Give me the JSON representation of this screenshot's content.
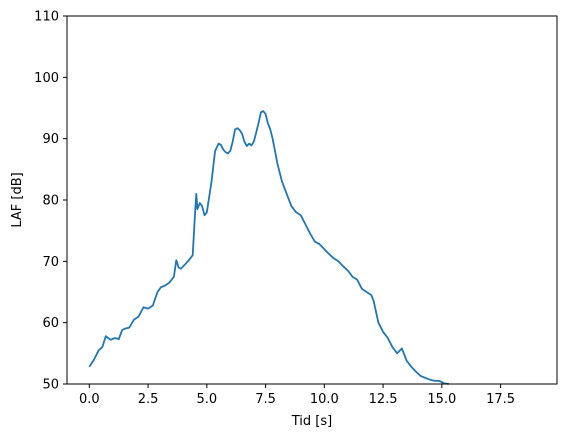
{
  "chart_data": {
    "type": "line",
    "title": "",
    "xlabel": "Tid [s]",
    "ylabel": "LAF [dB]",
    "xlim": [
      -0.95,
      19.9
    ],
    "ylim": [
      50,
      110
    ],
    "xticks": [
      0.0,
      2.5,
      5.0,
      7.5,
      10.0,
      12.5,
      15.0,
      17.5
    ],
    "xtick_labels": [
      "0.0",
      "2.5",
      "5.0",
      "7.5",
      "10.0",
      "12.5",
      "15.0",
      "17.5"
    ],
    "yticks": [
      50,
      60,
      70,
      80,
      90,
      100,
      110
    ],
    "ytick_labels": [
      "50",
      "60",
      "70",
      "80",
      "90",
      "100",
      "110"
    ],
    "grid": false,
    "legend": "none",
    "series": [
      {
        "color": "#1f77b4",
        "x": [
          0.0,
          0.2,
          0.4,
          0.55,
          0.7,
          0.8,
          0.9,
          1.1,
          1.25,
          1.4,
          1.5,
          1.7,
          1.9,
          2.1,
          2.3,
          2.5,
          2.7,
          2.9,
          3.05,
          3.2,
          3.4,
          3.6,
          3.7,
          3.8,
          3.9,
          4.0,
          4.2,
          4.4,
          4.5,
          4.55,
          4.6,
          4.7,
          4.8,
          4.9,
          5.0,
          5.1,
          5.2,
          5.35,
          5.5,
          5.6,
          5.7,
          5.8,
          5.9,
          6.0,
          6.1,
          6.2,
          6.3,
          6.4,
          6.5,
          6.6,
          6.7,
          6.8,
          6.9,
          7.0,
          7.1,
          7.2,
          7.3,
          7.4,
          7.5,
          7.6,
          7.7,
          7.8,
          7.9,
          8.0,
          8.2,
          8.4,
          8.6,
          8.8,
          9.0,
          9.2,
          9.4,
          9.6,
          9.8,
          10.0,
          10.2,
          10.4,
          10.6,
          10.8,
          11.0,
          11.2,
          11.4,
          11.6,
          11.8,
          12.0,
          12.1,
          12.3,
          12.5,
          12.7,
          12.9,
          13.1,
          13.3,
          13.5,
          13.7,
          13.9,
          14.1,
          14.3,
          14.5,
          14.7,
          14.9,
          15.1,
          15.3
        ],
        "y": [
          52.8,
          54.0,
          55.5,
          56.0,
          57.8,
          57.5,
          57.2,
          57.5,
          57.3,
          58.8,
          59.0,
          59.2,
          60.5,
          61.0,
          62.5,
          62.3,
          62.8,
          65.0,
          65.8,
          66.0,
          66.5,
          67.5,
          70.2,
          69.0,
          68.8,
          69.2,
          70.0,
          71.0,
          78.0,
          81.0,
          78.5,
          79.5,
          79.0,
          77.5,
          78.0,
          80.5,
          83.0,
          88.0,
          89.2,
          89.0,
          88.2,
          87.8,
          87.6,
          88.0,
          89.5,
          91.5,
          91.7,
          91.4,
          90.8,
          89.5,
          88.8,
          89.2,
          88.9,
          89.5,
          91.0,
          92.5,
          94.3,
          94.5,
          94.0,
          92.5,
          91.5,
          90.0,
          88.0,
          86.0,
          83.0,
          81.0,
          79.0,
          78.0,
          77.5,
          76.0,
          74.5,
          73.2,
          72.8,
          72.0,
          71.2,
          70.5,
          70.0,
          69.2,
          68.5,
          67.5,
          67.0,
          65.5,
          65.0,
          64.5,
          63.5,
          60.0,
          58.5,
          57.5,
          56.0,
          55.0,
          55.8,
          53.8,
          52.8,
          52.0,
          51.3,
          51.0,
          50.7,
          50.5,
          50.5,
          50.1,
          50.0
        ]
      }
    ]
  }
}
